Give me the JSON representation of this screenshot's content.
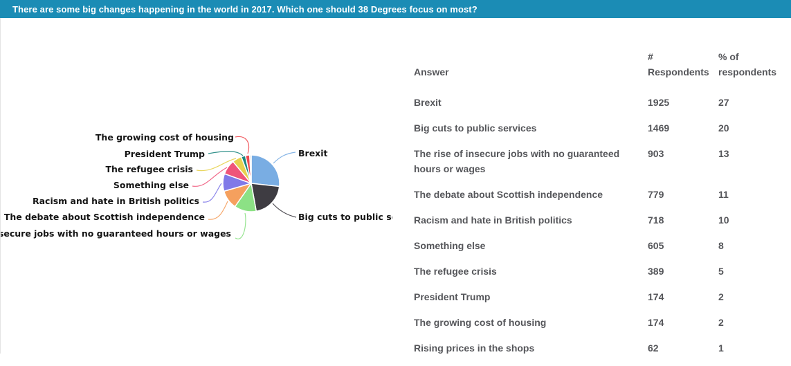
{
  "header": {
    "title": "There are some big changes happening in the world in 2017. Which one should 38 Degrees focus on most?",
    "bg_color": "#1b8cb5"
  },
  "chart_data": {
    "type": "pie",
    "labels": [
      "Brexit",
      "Big cuts to public services",
      "The rise of insecure jobs with no guaranteed hours or wages",
      "The debate about Scottish independence",
      "Racism and hate in British politics",
      "Something else",
      "The refugee crisis",
      "President Trump",
      "The growing cost of housing",
      "Rising prices in the shops"
    ],
    "values": [
      1925,
      1469,
      903,
      779,
      718,
      605,
      389,
      174,
      174,
      62
    ],
    "percents": [
      27,
      20,
      13,
      11,
      10,
      8,
      5,
      2,
      2,
      1
    ],
    "colors": [
      "#79ade3",
      "#3e3c42",
      "#8ce185",
      "#f5a05e",
      "#8079e8",
      "#ef557a",
      "#e7d24f",
      "#1d8680",
      "#ef4a50",
      "#cfcfcf"
    ],
    "legend_position": "callout-labels",
    "start_angle_deg": 0,
    "direction": "clockwise"
  },
  "table": {
    "headers": [
      "Answer",
      "#\nRespondents",
      "% of\nrespondents"
    ],
    "rows": [
      {
        "answer": "Brexit",
        "respondents": "1925",
        "percent": "27"
      },
      {
        "answer": "Big cuts to public services",
        "respondents": "1469",
        "percent": "20"
      },
      {
        "answer": "The rise of insecure jobs with no guaranteed hours or wages",
        "respondents": "903",
        "percent": "13"
      },
      {
        "answer": "The debate about Scottish independence",
        "respondents": "779",
        "percent": "11"
      },
      {
        "answer": "Racism and hate in British politics",
        "respondents": "718",
        "percent": "10"
      },
      {
        "answer": "Something else",
        "respondents": "605",
        "percent": "8"
      },
      {
        "answer": "The refugee crisis",
        "respondents": "389",
        "percent": "5"
      },
      {
        "answer": "President Trump",
        "respondents": "174",
        "percent": "2"
      },
      {
        "answer": "The growing cost of housing",
        "respondents": "174",
        "percent": "2"
      },
      {
        "answer": "Rising prices in the shops",
        "respondents": "62",
        "percent": "1"
      }
    ]
  }
}
